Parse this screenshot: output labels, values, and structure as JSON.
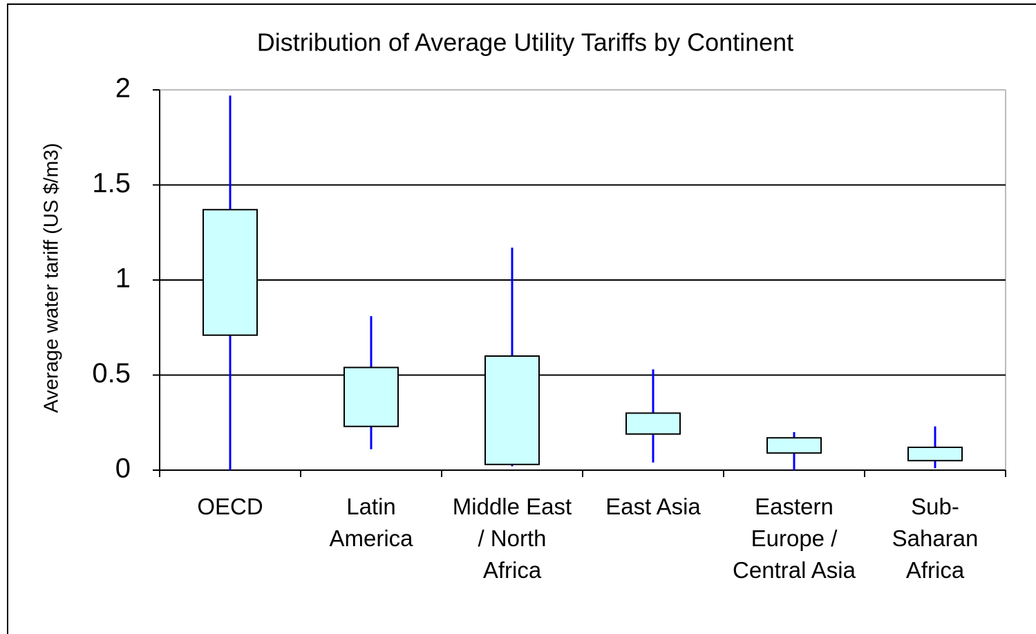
{
  "chart_data": {
    "type": "box",
    "title": "Distribution of Average Utility Tariffs by Continent",
    "y_label": "Average water tariff (US $/m3)",
    "categories": [
      "OECD",
      "Latin America",
      "Middle East / North Africa",
      "East Asia",
      "Eastern Europe / Central Asia",
      "Sub-Saharan Africa"
    ],
    "min": [
      0,
      0.11,
      0.02,
      0.04,
      0,
      0.01
    ],
    "q1": [
      0.71,
      0.23,
      0.03,
      0.19,
      0.09,
      0.05
    ],
    "q3": [
      1.37,
      0.54,
      0.6,
      0.3,
      0.17,
      0.12
    ],
    "max": [
      1.97,
      0.81,
      1.17,
      0.53,
      0.2,
      0.23
    ],
    "box_color": "#ccffff",
    "whisker_color": "#0000ff",
    "ylim": [
      0,
      2
    ],
    "yticks": [
      0,
      0.5,
      1,
      1.5,
      2
    ],
    "grid": true
  }
}
